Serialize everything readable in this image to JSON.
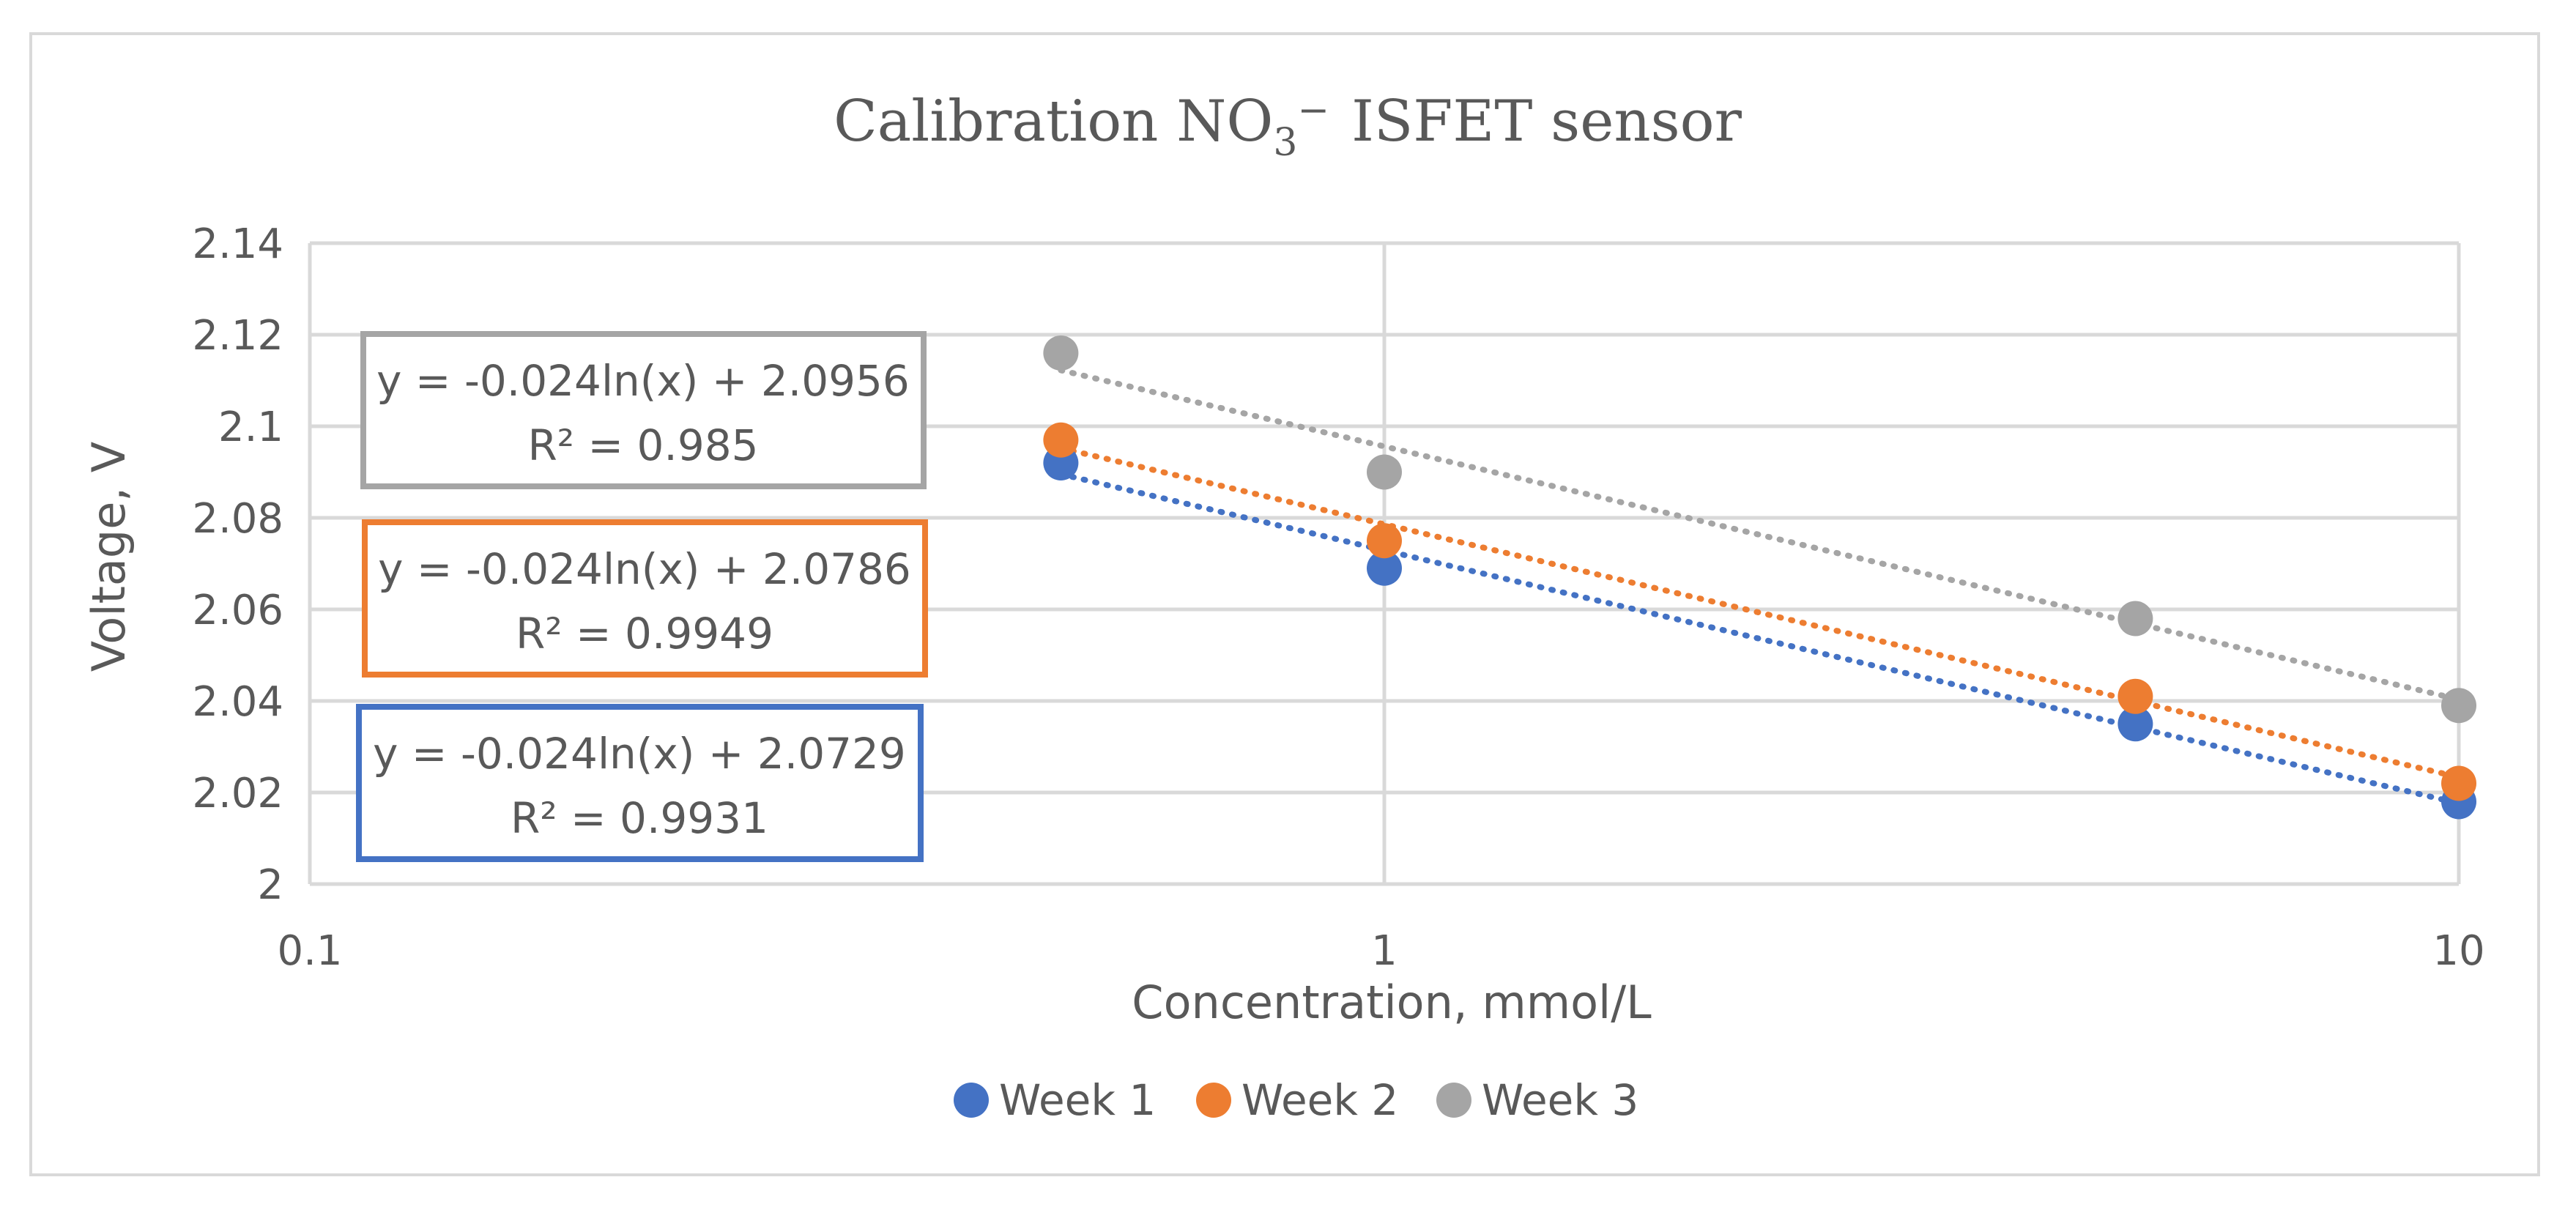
{
  "chart_data": {
    "type": "scatter",
    "title": {
      "prefix": "Calibration NO",
      "subscript": "3",
      "superscript": "−",
      "suffix": "ISFET sensor"
    },
    "xlabel": "Concentration, mmol/L",
    "ylabel": "Voltage, V",
    "x_scale": "log",
    "xlim": [
      0.1,
      10
    ],
    "ylim": [
      2,
      2.14
    ],
    "x_ticks": [
      0.1,
      1,
      10
    ],
    "x_tick_labels": [
      "0.1",
      "1",
      "10"
    ],
    "y_ticks": [
      2,
      2.02,
      2.04,
      2.06,
      2.08,
      2.1,
      2.12,
      2.14
    ],
    "y_tick_labels": [
      "2",
      "2.02",
      "2.04",
      "2.06",
      "2.08",
      "2.1",
      "2.12",
      "2.14"
    ],
    "grid": true,
    "legend_position": "bottom",
    "series": [
      {
        "name": "Week 1",
        "color": "#4472C4",
        "x": [
          0.5,
          1,
          5,
          10
        ],
        "y": [
          2.092,
          2.069,
          2.035,
          2.018
        ],
        "trendline": {
          "type": "log",
          "slope": -0.024,
          "intercept": 2.0729
        },
        "equation": "y = -0.024ln(x) + 2.0729",
        "r2": "R² = 0.9931"
      },
      {
        "name": "Week 2",
        "color": "#ED7D31",
        "x": [
          0.5,
          1,
          5,
          10
        ],
        "y": [
          2.097,
          2.075,
          2.041,
          2.022
        ],
        "trendline": {
          "type": "log",
          "slope": -0.024,
          "intercept": 2.0786
        },
        "equation": "y = -0.024ln(x) + 2.0786",
        "r2": "R² = 0.9949"
      },
      {
        "name": "Week 3",
        "color": "#A5A5A5",
        "x": [
          0.5,
          1,
          5,
          10
        ],
        "y": [
          2.116,
          2.09,
          2.058,
          2.039
        ],
        "trendline": {
          "type": "log",
          "slope": -0.024,
          "intercept": 2.0956
        },
        "equation": "y = -0.024ln(x) + 2.0956",
        "r2": "R² = 0.985"
      }
    ],
    "gridline_color": "#d9d9d9",
    "text_color": "#595959"
  }
}
